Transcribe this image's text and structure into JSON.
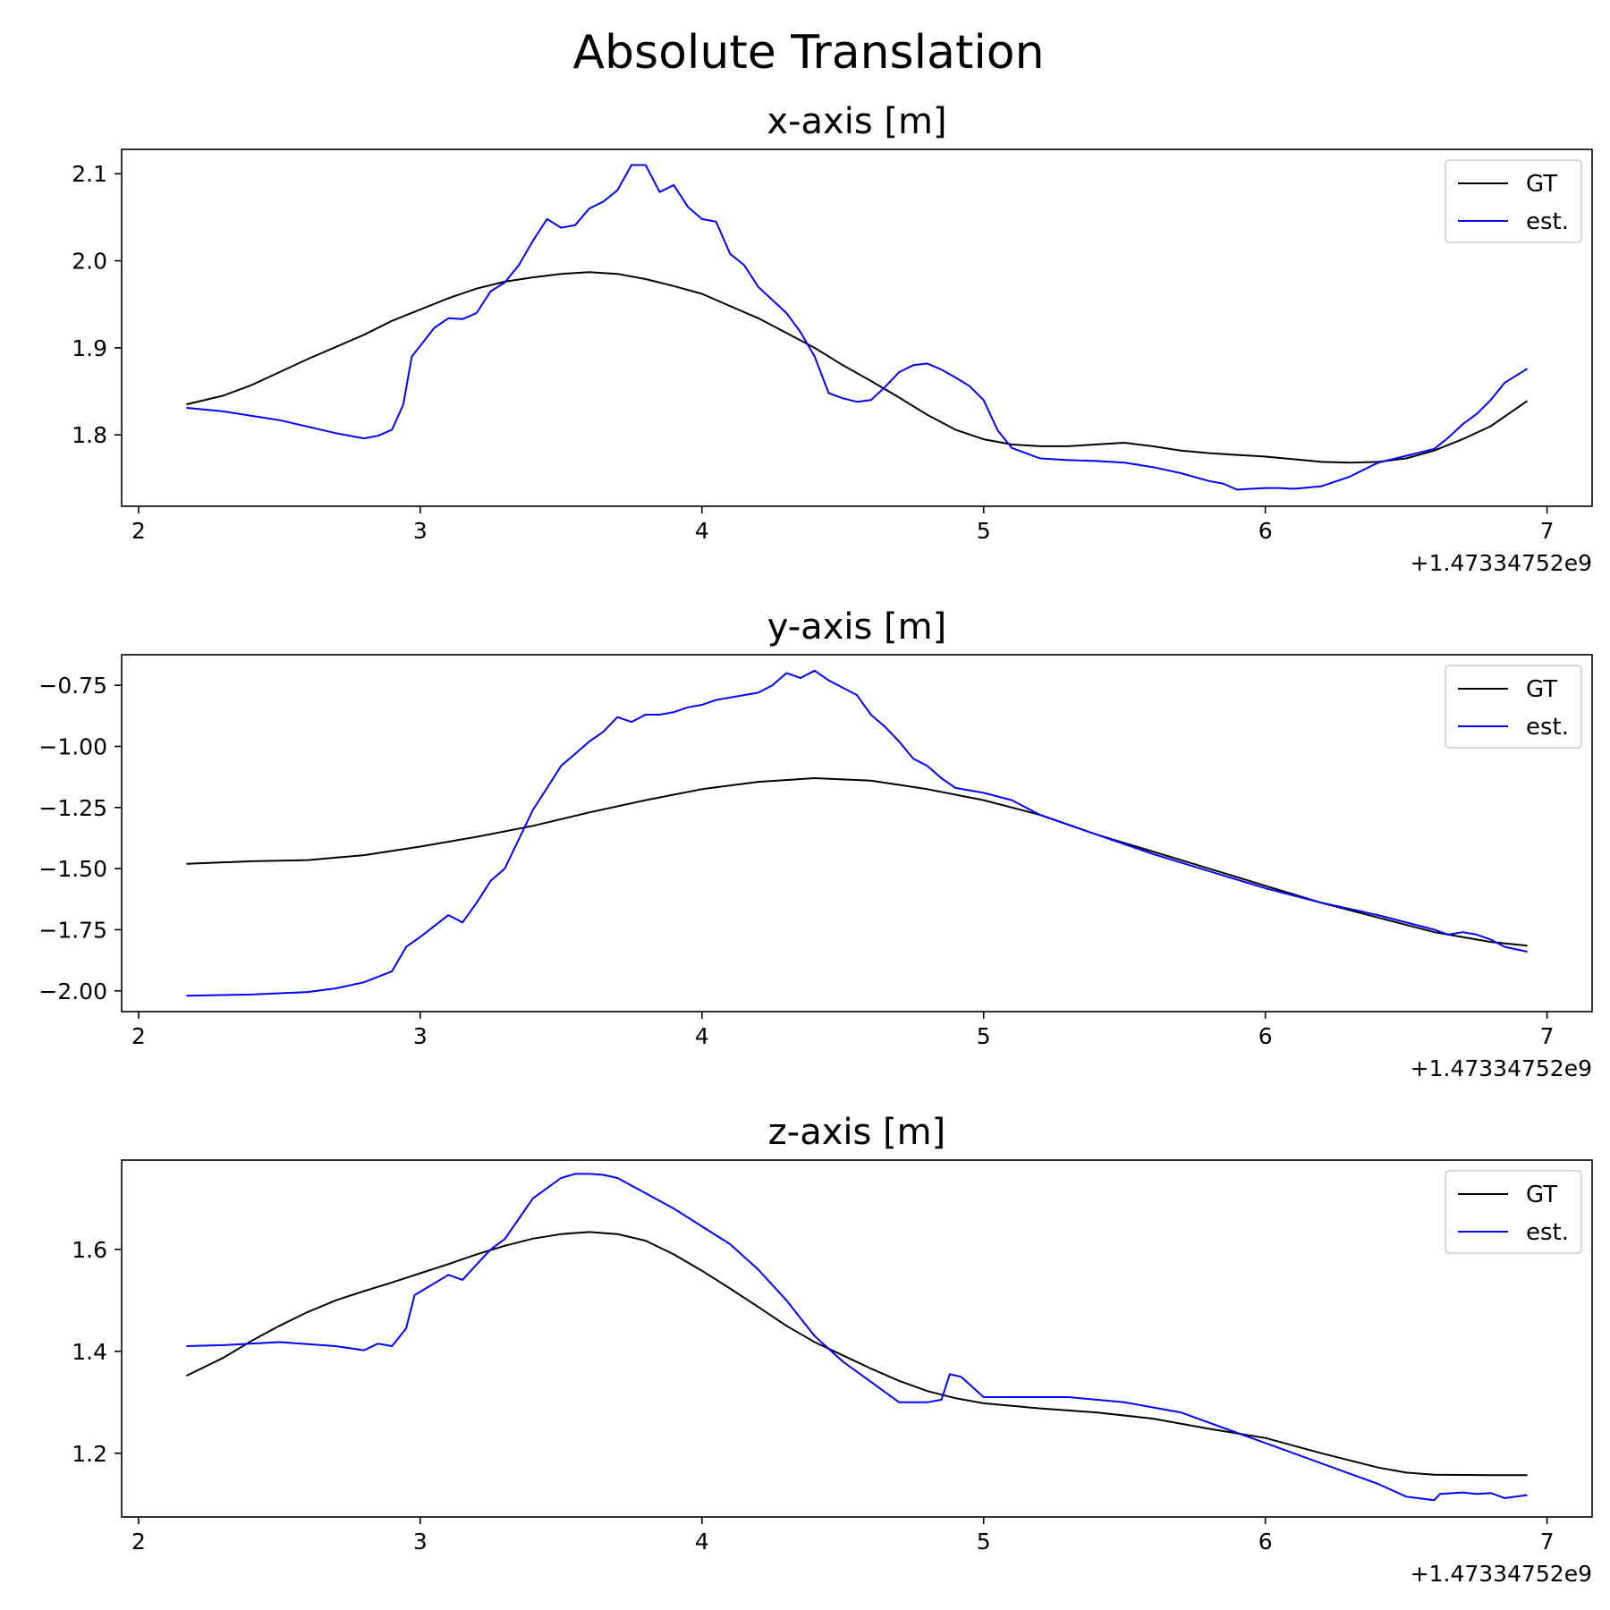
{
  "figure": {
    "title": "Absolute Translation"
  },
  "chart_data": [
    {
      "type": "line",
      "title": "x-axis [m]",
      "offset_label": "+1.47334752e9",
      "xlim": [
        1.94,
        7.16
      ],
      "ylim": [
        1.718,
        2.128
      ],
      "xticks": [
        2,
        3,
        4,
        5,
        6,
        7
      ],
      "yticks": [
        1.8,
        1.9,
        2.0,
        2.1
      ],
      "ytick_labels": [
        "1.8",
        "1.9",
        "2.0",
        "2.1"
      ],
      "legend": {
        "position": "top-right",
        "entries": [
          "GT",
          "est."
        ]
      },
      "series": [
        {
          "name": "GT",
          "color": "#000000",
          "x": [
            2.17,
            2.3,
            2.4,
            2.5,
            2.6,
            2.7,
            2.8,
            2.9,
            3.0,
            3.1,
            3.2,
            3.3,
            3.4,
            3.5,
            3.6,
            3.7,
            3.8,
            3.9,
            4.0,
            4.1,
            4.2,
            4.3,
            4.4,
            4.5,
            4.6,
            4.7,
            4.8,
            4.9,
            5.0,
            5.1,
            5.2,
            5.3,
            5.4,
            5.5,
            5.6,
            5.7,
            5.8,
            5.9,
            6.0,
            6.1,
            6.2,
            6.3,
            6.4,
            6.5,
            6.6,
            6.7,
            6.8,
            6.93
          ],
          "y": [
            1.835,
            1.845,
            1.857,
            1.872,
            1.887,
            1.901,
            1.915,
            1.931,
            1.944,
            1.957,
            1.968,
            1.976,
            1.981,
            1.985,
            1.987,
            1.985,
            1.979,
            1.971,
            1.962,
            1.948,
            1.934,
            1.917,
            1.9,
            1.88,
            1.862,
            1.843,
            1.823,
            1.806,
            1.795,
            1.789,
            1.787,
            1.787,
            1.789,
            1.791,
            1.787,
            1.782,
            1.779,
            1.777,
            1.775,
            1.772,
            1.769,
            1.768,
            1.769,
            1.773,
            1.782,
            1.795,
            1.81,
            1.839
          ]
        },
        {
          "name": "est.",
          "color": "#0000ff",
          "x": [
            2.17,
            2.3,
            2.5,
            2.7,
            2.8,
            2.85,
            2.9,
            2.94,
            2.97,
            3.05,
            3.1,
            3.15,
            3.2,
            3.25,
            3.3,
            3.35,
            3.4,
            3.45,
            3.5,
            3.55,
            3.6,
            3.65,
            3.7,
            3.75,
            3.8,
            3.85,
            3.9,
            3.95,
            4.0,
            4.05,
            4.1,
            4.15,
            4.2,
            4.25,
            4.3,
            4.35,
            4.4,
            4.45,
            4.5,
            4.55,
            4.6,
            4.65,
            4.7,
            4.75,
            4.8,
            4.85,
            4.9,
            4.95,
            5.0,
            5.05,
            5.1,
            5.2,
            5.3,
            5.4,
            5.5,
            5.6,
            5.7,
            5.8,
            5.85,
            5.9,
            5.95,
            6.0,
            6.05,
            6.1,
            6.2,
            6.3,
            6.4,
            6.5,
            6.6,
            6.65,
            6.7,
            6.75,
            6.8,
            6.85,
            6.93
          ],
          "y": [
            1.831,
            1.827,
            1.817,
            1.802,
            1.796,
            1.799,
            1.806,
            1.835,
            1.89,
            1.923,
            1.934,
            1.933,
            1.94,
            1.965,
            1.975,
            1.995,
            2.023,
            2.048,
            2.038,
            2.041,
            2.06,
            2.068,
            2.081,
            2.11,
            2.11,
            2.079,
            2.087,
            2.062,
            2.048,
            2.045,
            2.008,
            1.995,
            1.97,
            1.955,
            1.94,
            1.918,
            1.89,
            1.848,
            1.842,
            1.838,
            1.84,
            1.855,
            1.872,
            1.88,
            1.882,
            1.875,
            1.866,
            1.856,
            1.84,
            1.805,
            1.785,
            1.773,
            1.771,
            1.77,
            1.768,
            1.763,
            1.756,
            1.747,
            1.744,
            1.737,
            1.738,
            1.739,
            1.739,
            1.738,
            1.741,
            1.752,
            1.768,
            1.776,
            1.784,
            1.797,
            1.812,
            1.824,
            1.84,
            1.86,
            1.876
          ]
        }
      ]
    },
    {
      "type": "line",
      "title": "y-axis [m]",
      "offset_label": "+1.47334752e9",
      "xlim": [
        1.94,
        7.16
      ],
      "ylim": [
        -2.085,
        -0.625
      ],
      "xticks": [
        2,
        3,
        4,
        5,
        6,
        7
      ],
      "yticks": [
        -2.0,
        -1.75,
        -1.5,
        -1.25,
        -1.0,
        -0.75
      ],
      "ytick_labels": [
        "−2.00",
        "−1.75",
        "−1.50",
        "−1.25",
        "−1.00",
        "−0.75"
      ],
      "legend": {
        "position": "top-right",
        "entries": [
          "GT",
          "est."
        ]
      },
      "series": [
        {
          "name": "GT",
          "color": "#000000",
          "x": [
            2.17,
            2.4,
            2.6,
            2.8,
            3.0,
            3.2,
            3.4,
            3.6,
            3.8,
            4.0,
            4.2,
            4.4,
            4.6,
            4.8,
            5.0,
            5.2,
            5.4,
            5.6,
            5.8,
            6.0,
            6.2,
            6.4,
            6.6,
            6.8,
            6.93
          ],
          "y": [
            -1.48,
            -1.47,
            -1.465,
            -1.445,
            -1.41,
            -1.37,
            -1.325,
            -1.27,
            -1.22,
            -1.175,
            -1.145,
            -1.13,
            -1.14,
            -1.175,
            -1.22,
            -1.28,
            -1.36,
            -1.43,
            -1.5,
            -1.57,
            -1.64,
            -1.7,
            -1.76,
            -1.8,
            -1.815
          ]
        },
        {
          "name": "est.",
          "color": "#0000ff",
          "x": [
            2.17,
            2.4,
            2.6,
            2.7,
            2.8,
            2.9,
            2.95,
            3.0,
            3.1,
            3.15,
            3.2,
            3.25,
            3.3,
            3.35,
            3.4,
            3.45,
            3.5,
            3.55,
            3.6,
            3.65,
            3.7,
            3.75,
            3.8,
            3.85,
            3.9,
            3.95,
            4.0,
            4.05,
            4.1,
            4.15,
            4.2,
            4.25,
            4.3,
            4.35,
            4.4,
            4.45,
            4.5,
            4.55,
            4.6,
            4.65,
            4.7,
            4.75,
            4.8,
            4.85,
            4.9,
            5.0,
            5.1,
            5.2,
            5.4,
            5.6,
            5.8,
            6.0,
            6.2,
            6.4,
            6.6,
            6.65,
            6.7,
            6.75,
            6.8,
            6.85,
            6.93
          ],
          "y": [
            -2.02,
            -2.015,
            -2.005,
            -1.99,
            -1.965,
            -1.92,
            -1.82,
            -1.78,
            -1.69,
            -1.72,
            -1.64,
            -1.55,
            -1.5,
            -1.38,
            -1.26,
            -1.17,
            -1.08,
            -1.03,
            -0.98,
            -0.94,
            -0.88,
            -0.9,
            -0.87,
            -0.87,
            -0.86,
            -0.84,
            -0.83,
            -0.81,
            -0.8,
            -0.79,
            -0.78,
            -0.75,
            -0.7,
            -0.72,
            -0.69,
            -0.73,
            -0.76,
            -0.79,
            -0.87,
            -0.92,
            -0.98,
            -1.05,
            -1.08,
            -1.13,
            -1.17,
            -1.19,
            -1.22,
            -1.28,
            -1.36,
            -1.44,
            -1.51,
            -1.58,
            -1.64,
            -1.69,
            -1.75,
            -1.77,
            -1.76,
            -1.77,
            -1.79,
            -1.82,
            -1.84
          ]
        }
      ]
    },
    {
      "type": "line",
      "title": "z-axis [m]",
      "offset_label": "+1.47334752e9",
      "xlim": [
        1.94,
        7.16
      ],
      "ylim": [
        1.075,
        1.775
      ],
      "xticks": [
        2,
        3,
        4,
        5,
        6,
        7
      ],
      "yticks": [
        1.2,
        1.4,
        1.6
      ],
      "ytick_labels": [
        "1.2",
        "1.4",
        "1.6"
      ],
      "legend": {
        "position": "top-right",
        "entries": [
          "GT",
          "est."
        ]
      },
      "series": [
        {
          "name": "GT",
          "color": "#000000",
          "x": [
            2.17,
            2.3,
            2.4,
            2.5,
            2.6,
            2.7,
            2.8,
            2.9,
            3.0,
            3.1,
            3.2,
            3.3,
            3.4,
            3.5,
            3.6,
            3.7,
            3.8,
            3.9,
            4.0,
            4.1,
            4.2,
            4.3,
            4.4,
            4.5,
            4.6,
            4.7,
            4.8,
            4.9,
            5.0,
            5.2,
            5.4,
            5.6,
            5.8,
            6.0,
            6.2,
            6.4,
            6.5,
            6.6,
            6.8,
            6.93
          ],
          "y": [
            1.352,
            1.387,
            1.42,
            1.45,
            1.477,
            1.5,
            1.518,
            1.535,
            1.553,
            1.571,
            1.59,
            1.607,
            1.621,
            1.63,
            1.634,
            1.63,
            1.617,
            1.59,
            1.558,
            1.523,
            1.487,
            1.45,
            1.418,
            1.392,
            1.366,
            1.342,
            1.322,
            1.308,
            1.298,
            1.288,
            1.28,
            1.268,
            1.248,
            1.23,
            1.2,
            1.172,
            1.162,
            1.158,
            1.157,
            1.157
          ]
        },
        {
          "name": "est.",
          "color": "#0000ff",
          "x": [
            2.17,
            2.3,
            2.5,
            2.7,
            2.8,
            2.85,
            2.9,
            2.95,
            2.98,
            3.1,
            3.15,
            3.2,
            3.25,
            3.3,
            3.35,
            3.4,
            3.45,
            3.5,
            3.55,
            3.6,
            3.65,
            3.7,
            3.75,
            3.8,
            3.9,
            4.0,
            4.1,
            4.2,
            4.3,
            4.4,
            4.5,
            4.6,
            4.7,
            4.8,
            4.85,
            4.88,
            4.92,
            5.0,
            5.1,
            5.3,
            5.5,
            5.7,
            5.9,
            6.0,
            6.2,
            6.4,
            6.5,
            6.6,
            6.62,
            6.7,
            6.75,
            6.8,
            6.85,
            6.93
          ],
          "y": [
            1.41,
            1.412,
            1.418,
            1.41,
            1.402,
            1.415,
            1.41,
            1.445,
            1.51,
            1.55,
            1.54,
            1.57,
            1.6,
            1.62,
            1.66,
            1.7,
            1.72,
            1.74,
            1.748,
            1.748,
            1.746,
            1.74,
            1.725,
            1.71,
            1.68,
            1.645,
            1.61,
            1.56,
            1.5,
            1.43,
            1.38,
            1.34,
            1.3,
            1.3,
            1.305,
            1.355,
            1.35,
            1.31,
            1.31,
            1.31,
            1.3,
            1.28,
            1.24,
            1.22,
            1.18,
            1.14,
            1.115,
            1.108,
            1.12,
            1.123,
            1.12,
            1.122,
            1.112,
            1.118
          ]
        }
      ]
    }
  ]
}
